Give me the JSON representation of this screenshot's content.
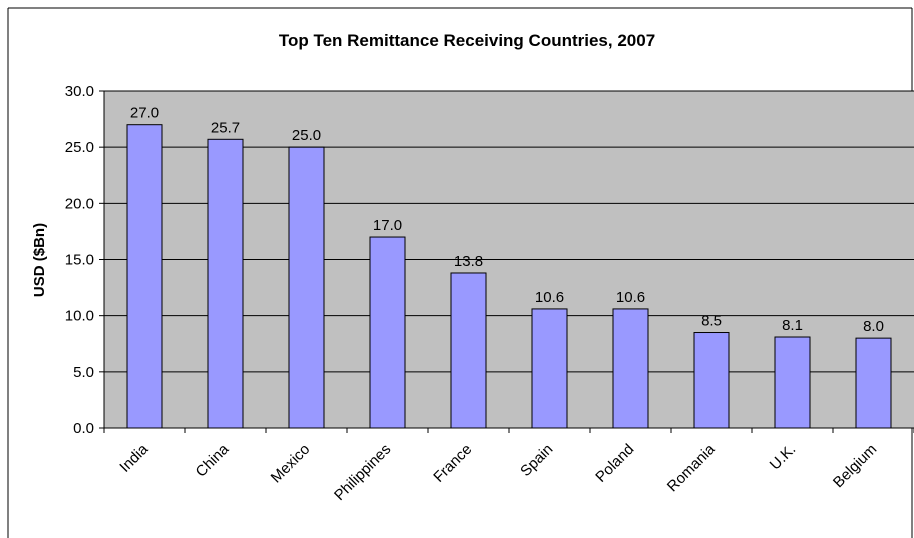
{
  "chart_data": {
    "type": "bar",
    "title": "Top Ten Remittance Receiving Countries, 2007",
    "xlabel": "",
    "ylabel": "USD ($Bn)",
    "categories": [
      "India",
      "China",
      "Mexico",
      "Philippines",
      "France",
      "Spain",
      "Poland",
      "Romania",
      "U.K.",
      "Belgium"
    ],
    "values": [
      27.0,
      25.7,
      25.0,
      17.0,
      13.8,
      10.6,
      10.6,
      8.5,
      8.1,
      8.0
    ],
    "data_labels": [
      "27.0",
      "25.7",
      "25.0",
      "17.0",
      "13.8",
      "10.6",
      "10.6",
      "8.5",
      "8.1",
      "8.0"
    ],
    "ylim": [
      0,
      30
    ],
    "yticks": [
      "0.0",
      "5.0",
      "10.0",
      "15.0",
      "20.0",
      "25.0",
      "30.0"
    ],
    "grid": true,
    "legend": "none",
    "colors": {
      "bar_fill": "#9999ff",
      "bar_stroke": "#000000",
      "plot_background": "#c0c0c0",
      "gridline": "#000000",
      "frame": "#000000"
    }
  }
}
